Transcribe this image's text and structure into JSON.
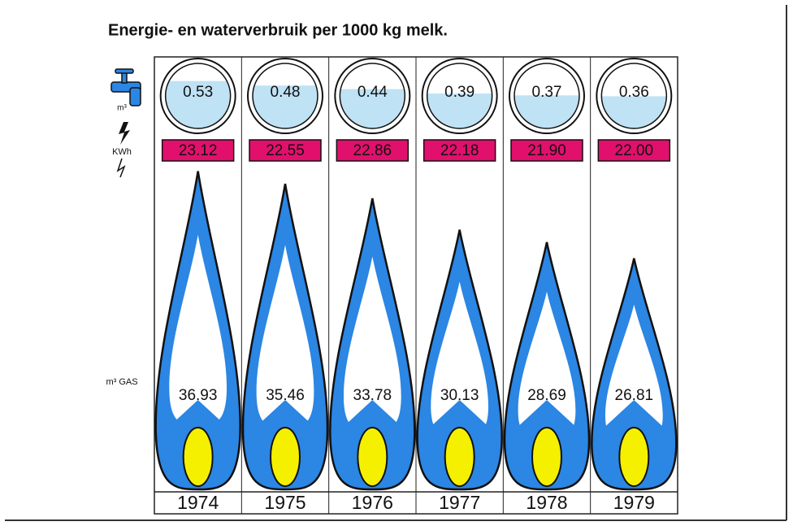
{
  "chart_data": {
    "type": "pictogram",
    "title": "Energie- en waterverbruik per 1000 kg melk.",
    "categories": [
      "1974",
      "1975",
      "1976",
      "1977",
      "1978",
      "1979"
    ],
    "series": [
      {
        "name": "m³",
        "color": "#bfe2f4",
        "values": [
          0.53,
          0.48,
          0.44,
          0.39,
          0.37,
          0.36
        ]
      },
      {
        "name": "KWh",
        "color": "#e1106c",
        "values": [
          23.12,
          22.55,
          22.86,
          22.18,
          21.9,
          22.0
        ],
        "value_labels": [
          "23.12",
          "22.55",
          "22.86",
          "22.18",
          "21.90",
          "22.00"
        ]
      },
      {
        "name": "m³ GAS",
        "color": "#2b86e4",
        "values": [
          36.93,
          35.46,
          33.78,
          30.13,
          28.69,
          26.81
        ]
      }
    ]
  }
}
